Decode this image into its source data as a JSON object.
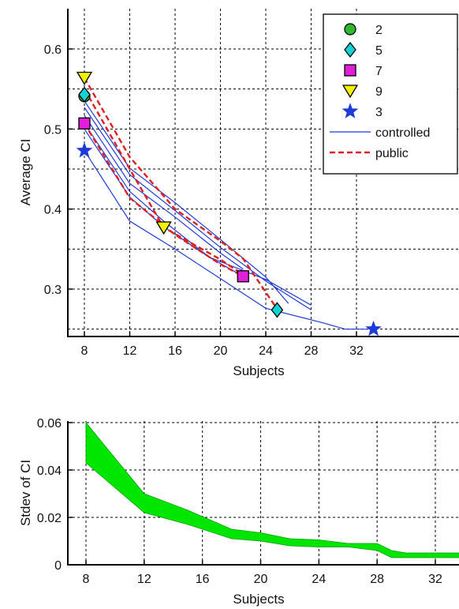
{
  "chart_data": [
    {
      "type": "line",
      "xlabel": "Subjects",
      "ylabel": "Average CI",
      "xlim": [
        7.2,
        34
      ],
      "ylim": [
        0.24,
        0.65
      ],
      "xticks": [
        8,
        12,
        16,
        20,
        24,
        28,
        32
      ],
      "yticks": [
        0.3,
        0.4,
        0.5,
        0.6
      ],
      "grid": true,
      "legend_position": "top-right",
      "legend": [
        "2",
        "5",
        "7",
        "9",
        "3",
        "controlled",
        "public"
      ],
      "line_series": [
        {
          "name": "controlled",
          "style": "solid",
          "color": "#1f3bd6",
          "x": [
            8,
            12,
            16,
            20,
            24,
            26
          ],
          "y": [
            0.535,
            0.451,
            0.408,
            0.362,
            0.315,
            0.282
          ]
        },
        {
          "name": "controlled",
          "style": "solid",
          "color": "#1f3bd6",
          "x": [
            8,
            12,
            16,
            20,
            24,
            28
          ],
          "y": [
            0.527,
            0.443,
            0.398,
            0.352,
            0.31,
            0.274
          ]
        },
        {
          "name": "controlled",
          "style": "solid",
          "color": "#1f3bd6",
          "x": [
            8,
            12,
            16,
            20,
            22
          ],
          "y": [
            0.517,
            0.432,
            0.39,
            0.345,
            0.325
          ]
        },
        {
          "name": "controlled",
          "style": "solid",
          "color": "#1f3bd6",
          "x": [
            8,
            12,
            15,
            19,
            22
          ],
          "y": [
            0.507,
            0.422,
            0.385,
            0.34,
            0.316
          ]
        },
        {
          "name": "controlled",
          "style": "solid",
          "color": "#1f3bd6",
          "x": [
            8,
            12,
            15,
            19,
            24,
            28
          ],
          "y": [
            0.5,
            0.415,
            0.378,
            0.34,
            0.312,
            0.28
          ]
        },
        {
          "name": "controlled",
          "style": "solid",
          "color": "#1f3bd6",
          "x": [
            8,
            12,
            16,
            20,
            24,
            29,
            31,
            33
          ],
          "y": [
            0.473,
            0.385,
            0.35,
            0.313,
            0.276,
            0.258,
            0.25,
            0.25
          ]
        },
        {
          "name": "public",
          "style": "dashed",
          "color": "#e02020",
          "x": [
            8,
            12,
            16,
            20,
            22,
            25
          ],
          "y": [
            0.564,
            0.465,
            0.4,
            0.36,
            0.338,
            0.275
          ]
        },
        {
          "name": "public",
          "style": "dashed",
          "color": "#e02020",
          "x": [
            8,
            12,
            15,
            20,
            22
          ],
          "y": [
            0.55,
            0.45,
            0.377,
            0.337,
            0.318
          ]
        },
        {
          "name": "public",
          "style": "dashed",
          "color": "#e02020",
          "x": [
            8,
            12,
            16,
            20,
            22
          ],
          "y": [
            0.507,
            0.414,
            0.368,
            0.331,
            0.316
          ]
        }
      ],
      "marker_points": [
        {
          "name": "2",
          "marker": "circle",
          "color": "#2eb82e",
          "x": 8,
          "y": 0.541
        },
        {
          "name": "5",
          "marker": "diamond",
          "color": "#16d3d3",
          "x": 8,
          "y": 0.543
        },
        {
          "name": "5",
          "marker": "diamond",
          "color": "#16d3d3",
          "x": 25,
          "y": 0.274
        },
        {
          "name": "7",
          "marker": "square",
          "color": "#e020d8",
          "x": 8,
          "y": 0.507
        },
        {
          "name": "7",
          "marker": "square",
          "color": "#e020d8",
          "x": 22,
          "y": 0.316
        },
        {
          "name": "9",
          "marker": "triangle",
          "color": "#f2f200",
          "x": 8,
          "y": 0.564
        },
        {
          "name": "9",
          "marker": "triangle",
          "color": "#f2f200",
          "x": 15,
          "y": 0.377
        },
        {
          "name": "3",
          "marker": "star",
          "color": "#1f3bd6",
          "x": 8,
          "y": 0.473
        },
        {
          "name": "3",
          "marker": "star",
          "color": "#1f3bd6",
          "x": 33.5,
          "y": 0.25
        }
      ],
      "legend_entries": [
        {
          "label": "2",
          "marker": "circle",
          "color": "#2eb82e"
        },
        {
          "label": "5",
          "marker": "diamond",
          "color": "#16d3d3"
        },
        {
          "label": "7",
          "marker": "square",
          "color": "#e020d8"
        },
        {
          "label": "9",
          "marker": "triangle",
          "color": "#f2f200"
        },
        {
          "label": "3",
          "marker": "star",
          "color": "#1f3bd6"
        },
        {
          "label": "controlled",
          "line": "solid",
          "color": "#1f3bd6"
        },
        {
          "label": "public",
          "line": "dashed",
          "color": "#e02020"
        }
      ]
    },
    {
      "type": "area",
      "xlabel": "Subjects",
      "ylabel": "Stdev of CI",
      "xlim": [
        7.2,
        34
      ],
      "ylim": [
        0,
        0.06
      ],
      "xticks": [
        8,
        12,
        16,
        20,
        24,
        28,
        32
      ],
      "yticks": [
        0,
        0.02,
        0.04,
        0.06
      ],
      "grid": true,
      "color": "#00e600",
      "band": {
        "x": [
          8,
          12,
          15,
          18,
          20,
          22,
          24,
          26,
          28,
          29,
          30,
          32,
          34
        ],
        "upper": [
          0.06,
          0.03,
          0.023,
          0.015,
          0.0135,
          0.011,
          0.0105,
          0.009,
          0.009,
          0.006,
          0.005,
          0.005,
          0.005
        ],
        "lower": [
          0.043,
          0.022,
          0.017,
          0.011,
          0.01,
          0.008,
          0.0075,
          0.0075,
          0.006,
          0.003,
          0.003,
          0.003,
          0.003
        ]
      }
    }
  ]
}
